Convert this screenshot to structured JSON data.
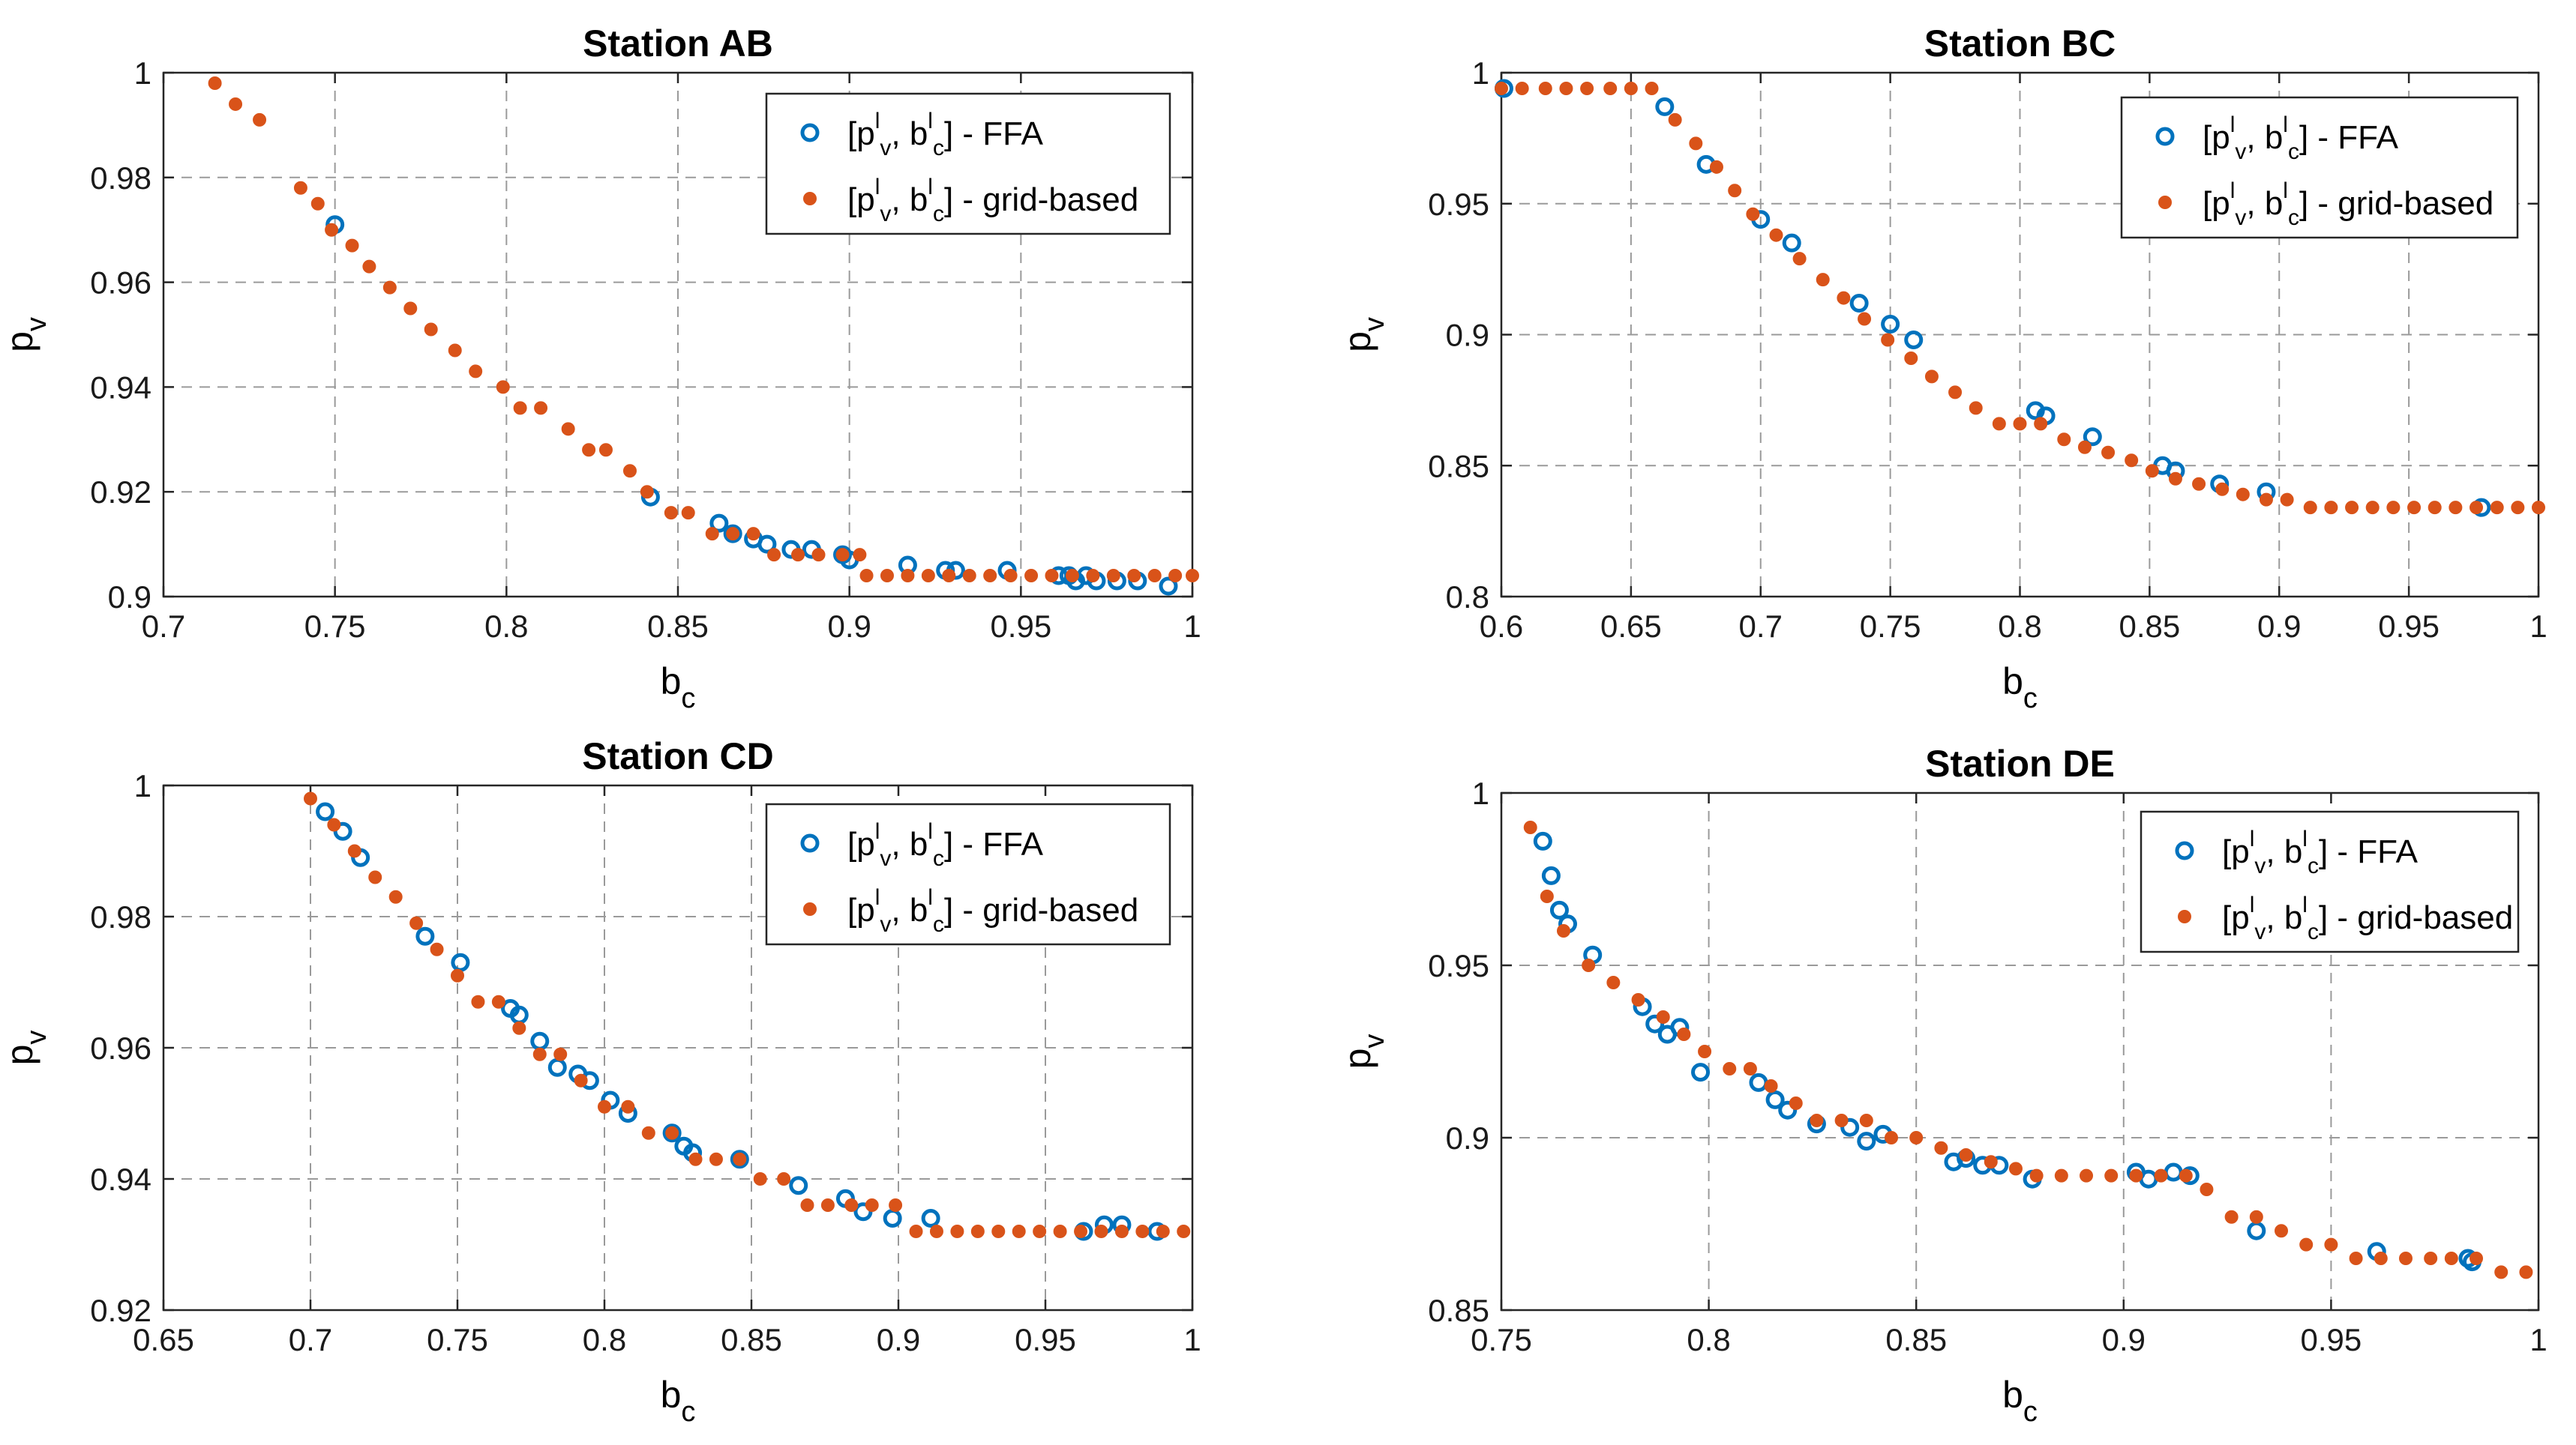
{
  "chart_data": [
    {
      "type": "scatter",
      "title": "Station AB",
      "xlabel_base": "b",
      "xlabel_sub": "c",
      "ylabel_base": "p",
      "ylabel_sub": "v",
      "xlim": [
        0.7,
        1.0
      ],
      "ylim": [
        0.9,
        1.0
      ],
      "xticks": [
        0.7,
        0.75,
        0.8,
        0.85,
        0.9,
        0.95,
        1
      ],
      "yticks": [
        0.9,
        0.92,
        0.94,
        0.96,
        0.98,
        1
      ],
      "xtick_labels": [
        "0.7",
        "0.75",
        "0.8",
        "0.85",
        "0.9",
        "0.95",
        "1"
      ],
      "ytick_labels": [
        "0.9",
        "0.92",
        "0.94",
        "0.96",
        "0.98",
        "1"
      ],
      "legend": {
        "position": "top-right",
        "entries": [
          "FFA",
          "grid-based"
        ]
      },
      "series": [
        {
          "name": "FFA",
          "marker": "circle",
          "color": "#0072BD",
          "x": [
            0.75,
            0.842,
            0.862,
            0.866,
            0.872,
            0.876,
            0.883,
            0.889,
            0.898,
            0.9,
            0.917,
            0.928,
            0.931,
            0.946,
            0.961,
            0.964,
            0.966,
            0.969,
            0.972,
            0.978,
            0.984,
            0.993
          ],
          "y": [
            0.971,
            0.919,
            0.914,
            0.912,
            0.911,
            0.91,
            0.909,
            0.909,
            0.908,
            0.907,
            0.906,
            0.905,
            0.905,
            0.905,
            0.904,
            0.904,
            0.903,
            0.904,
            0.903,
            0.903,
            0.903,
            0.902
          ]
        },
        {
          "name": "grid-based",
          "marker": "dot",
          "color": "#D95319",
          "x": [
            0.715,
            0.721,
            0.728,
            0.74,
            0.745,
            0.749,
            0.755,
            0.76,
            0.766,
            0.772,
            0.778,
            0.785,
            0.791,
            0.799,
            0.804,
            0.81,
            0.818,
            0.824,
            0.829,
            0.836,
            0.841,
            0.848,
            0.853,
            0.86,
            0.866,
            0.872,
            0.878,
            0.885,
            0.891,
            0.898,
            0.903,
            0.905,
            0.911,
            0.917,
            0.923,
            0.929,
            0.935,
            0.941,
            0.947,
            0.953,
            0.959,
            0.965,
            0.971,
            0.977,
            0.983,
            0.989,
            0.995,
            1.0
          ],
          "y": [
            0.998,
            0.994,
            0.991,
            0.978,
            0.975,
            0.97,
            0.967,
            0.963,
            0.959,
            0.955,
            0.951,
            0.947,
            0.943,
            0.94,
            0.936,
            0.936,
            0.932,
            0.928,
            0.928,
            0.924,
            0.92,
            0.916,
            0.916,
            0.912,
            0.912,
            0.912,
            0.908,
            0.908,
            0.908,
            0.908,
            0.908,
            0.904,
            0.904,
            0.904,
            0.904,
            0.904,
            0.904,
            0.904,
            0.904,
            0.904,
            0.904,
            0.904,
            0.904,
            0.904,
            0.904,
            0.904,
            0.904,
            0.904
          ]
        }
      ]
    },
    {
      "type": "scatter",
      "title": "Station BC",
      "xlabel_base": "b",
      "xlabel_sub": "c",
      "ylabel_base": "p",
      "ylabel_sub": "v",
      "xlim": [
        0.6,
        1.0
      ],
      "ylim": [
        0.8,
        1.0
      ],
      "xticks": [
        0.6,
        0.65,
        0.7,
        0.75,
        0.8,
        0.85,
        0.9,
        0.95,
        1
      ],
      "yticks": [
        0.8,
        0.85,
        0.9,
        0.95,
        1
      ],
      "xtick_labels": [
        "0.6",
        "0.65",
        "0.7",
        "0.75",
        "0.8",
        "0.85",
        "0.9",
        "0.95",
        "1"
      ],
      "ytick_labels": [
        "0.8",
        "0.85",
        "0.9",
        "0.95",
        "1"
      ],
      "legend": {
        "position": "top-right",
        "entries": [
          "FFA",
          "grid-based"
        ]
      },
      "series": [
        {
          "name": "FFA",
          "marker": "circle",
          "color": "#0072BD",
          "x": [
            0.601,
            0.663,
            0.679,
            0.7,
            0.712,
            0.738,
            0.75,
            0.759,
            0.806,
            0.81,
            0.828,
            0.855,
            0.86,
            0.877,
            0.895,
            0.978
          ],
          "y": [
            0.994,
            0.987,
            0.965,
            0.944,
            0.935,
            0.912,
            0.904,
            0.898,
            0.871,
            0.869,
            0.861,
            0.85,
            0.848,
            0.843,
            0.84,
            0.834
          ]
        },
        {
          "name": "grid-based",
          "marker": "dot",
          "color": "#D95319",
          "x": [
            0.6,
            0.608,
            0.617,
            0.625,
            0.633,
            0.642,
            0.65,
            0.658,
            0.667,
            0.675,
            0.683,
            0.69,
            0.697,
            0.706,
            0.715,
            0.724,
            0.732,
            0.74,
            0.749,
            0.758,
            0.766,
            0.775,
            0.783,
            0.792,
            0.8,
            0.808,
            0.817,
            0.825,
            0.834,
            0.843,
            0.851,
            0.86,
            0.869,
            0.878,
            0.886,
            0.895,
            0.903,
            0.912,
            0.92,
            0.928,
            0.936,
            0.944,
            0.952,
            0.96,
            0.968,
            0.976,
            0.984,
            0.992,
            1.0
          ],
          "y": [
            0.994,
            0.994,
            0.994,
            0.994,
            0.994,
            0.994,
            0.994,
            0.994,
            0.982,
            0.973,
            0.964,
            0.955,
            0.946,
            0.938,
            0.929,
            0.921,
            0.914,
            0.906,
            0.898,
            0.891,
            0.884,
            0.878,
            0.872,
            0.866,
            0.866,
            0.866,
            0.86,
            0.857,
            0.855,
            0.852,
            0.848,
            0.845,
            0.843,
            0.841,
            0.839,
            0.837,
            0.837,
            0.834,
            0.834,
            0.834,
            0.834,
            0.834,
            0.834,
            0.834,
            0.834,
            0.834,
            0.834,
            0.834,
            0.834
          ]
        }
      ]
    },
    {
      "type": "scatter",
      "title": "Station CD",
      "xlabel_base": "b",
      "xlabel_sub": "c",
      "ylabel_base": "p",
      "ylabel_sub": "v",
      "xlim": [
        0.65,
        1.0
      ],
      "ylim": [
        0.92,
        1.0
      ],
      "xticks": [
        0.65,
        0.7,
        0.75,
        0.8,
        0.85,
        0.9,
        0.95,
        1
      ],
      "yticks": [
        0.92,
        0.94,
        0.96,
        0.98,
        1
      ],
      "xtick_labels": [
        "0.65",
        "0.7",
        "0.75",
        "0.8",
        "0.85",
        "0.9",
        "0.95",
        "1"
      ],
      "ytick_labels": [
        "0.92",
        "0.94",
        "0.96",
        "0.98",
        "1"
      ],
      "legend": {
        "position": "top-right",
        "entries": [
          "FFA",
          "grid-based"
        ]
      },
      "series": [
        {
          "name": "FFA",
          "marker": "circle",
          "color": "#0072BD",
          "x": [
            0.705,
            0.711,
            0.717,
            0.739,
            0.751,
            0.768,
            0.771,
            0.778,
            0.784,
            0.791,
            0.795,
            0.802,
            0.808,
            0.823,
            0.827,
            0.83,
            0.846,
            0.866,
            0.882,
            0.888,
            0.898,
            0.911,
            0.963,
            0.97,
            0.976,
            0.988
          ],
          "y": [
            0.996,
            0.993,
            0.989,
            0.977,
            0.973,
            0.966,
            0.965,
            0.961,
            0.957,
            0.956,
            0.955,
            0.952,
            0.95,
            0.947,
            0.945,
            0.944,
            0.943,
            0.939,
            0.937,
            0.935,
            0.934,
            0.934,
            0.932,
            0.933,
            0.933,
            0.932
          ]
        },
        {
          "name": "grid-based",
          "marker": "dot",
          "color": "#D95319",
          "x": [
            0.7,
            0.708,
            0.715,
            0.722,
            0.729,
            0.736,
            0.743,
            0.75,
            0.757,
            0.764,
            0.771,
            0.778,
            0.785,
            0.792,
            0.8,
            0.808,
            0.815,
            0.823,
            0.831,
            0.838,
            0.846,
            0.853,
            0.861,
            0.869,
            0.876,
            0.884,
            0.891,
            0.899,
            0.906,
            0.913,
            0.92,
            0.927,
            0.934,
            0.941,
            0.948,
            0.955,
            0.962,
            0.969,
            0.976,
            0.983,
            0.99,
            0.997
          ],
          "y": [
            0.998,
            0.994,
            0.99,
            0.986,
            0.983,
            0.979,
            0.975,
            0.971,
            0.967,
            0.967,
            0.963,
            0.959,
            0.959,
            0.955,
            0.951,
            0.951,
            0.947,
            0.947,
            0.943,
            0.943,
            0.943,
            0.94,
            0.94,
            0.936,
            0.936,
            0.936,
            0.936,
            0.936,
            0.932,
            0.932,
            0.932,
            0.932,
            0.932,
            0.932,
            0.932,
            0.932,
            0.932,
            0.932,
            0.932,
            0.932,
            0.932,
            0.932
          ]
        }
      ]
    },
    {
      "type": "scatter",
      "title": "Station DE",
      "xlabel_base": "b",
      "xlabel_sub": "c",
      "ylabel_base": "p",
      "ylabel_sub": "v",
      "xlim": [
        0.75,
        1.0
      ],
      "ylim": [
        0.85,
        1.0
      ],
      "xticks": [
        0.75,
        0.8,
        0.85,
        0.9,
        0.95,
        1
      ],
      "yticks": [
        0.85,
        0.9,
        0.95,
        1
      ],
      "xtick_labels": [
        "0.75",
        "0.8",
        "0.85",
        "0.9",
        "0.95",
        "1"
      ],
      "ytick_labels": [
        "0.85",
        "0.9",
        "0.95",
        "1"
      ],
      "legend": {
        "position": "top-right",
        "entries": [
          "FFA",
          "grid-based"
        ]
      },
      "series": [
        {
          "name": "FFA",
          "marker": "circle",
          "color": "#0072BD",
          "x": [
            0.76,
            0.762,
            0.764,
            0.766,
            0.772,
            0.784,
            0.787,
            0.79,
            0.793,
            0.798,
            0.812,
            0.816,
            0.819,
            0.826,
            0.834,
            0.838,
            0.842,
            0.859,
            0.862,
            0.866,
            0.87,
            0.878,
            0.903,
            0.906,
            0.912,
            0.916,
            0.932,
            0.961,
            0.983,
            0.984
          ],
          "y": [
            0.986,
            0.976,
            0.966,
            0.962,
            0.953,
            0.938,
            0.933,
            0.93,
            0.932,
            0.919,
            0.916,
            0.911,
            0.908,
            0.904,
            0.903,
            0.899,
            0.901,
            0.893,
            0.894,
            0.892,
            0.892,
            0.888,
            0.89,
            0.888,
            0.89,
            0.889,
            0.873,
            0.867,
            0.865,
            0.864
          ]
        },
        {
          "name": "grid-based",
          "marker": "dot",
          "color": "#D95319",
          "x": [
            0.757,
            0.761,
            0.765,
            0.771,
            0.777,
            0.783,
            0.789,
            0.794,
            0.799,
            0.805,
            0.81,
            0.815,
            0.821,
            0.826,
            0.832,
            0.838,
            0.844,
            0.85,
            0.856,
            0.862,
            0.868,
            0.874,
            0.879,
            0.885,
            0.891,
            0.897,
            0.903,
            0.909,
            0.915,
            0.92,
            0.926,
            0.932,
            0.938,
            0.944,
            0.95,
            0.956,
            0.962,
            0.968,
            0.974,
            0.979,
            0.985,
            0.991,
            0.997
          ],
          "y": [
            0.99,
            0.97,
            0.96,
            0.95,
            0.945,
            0.94,
            0.935,
            0.93,
            0.925,
            0.92,
            0.92,
            0.915,
            0.91,
            0.905,
            0.905,
            0.905,
            0.9,
            0.9,
            0.897,
            0.895,
            0.893,
            0.891,
            0.889,
            0.889,
            0.889,
            0.889,
            0.889,
            0.889,
            0.889,
            0.885,
            0.877,
            0.877,
            0.873,
            0.869,
            0.869,
            0.865,
            0.865,
            0.865,
            0.865,
            0.865,
            0.865,
            0.861,
            0.861
          ]
        }
      ]
    }
  ]
}
